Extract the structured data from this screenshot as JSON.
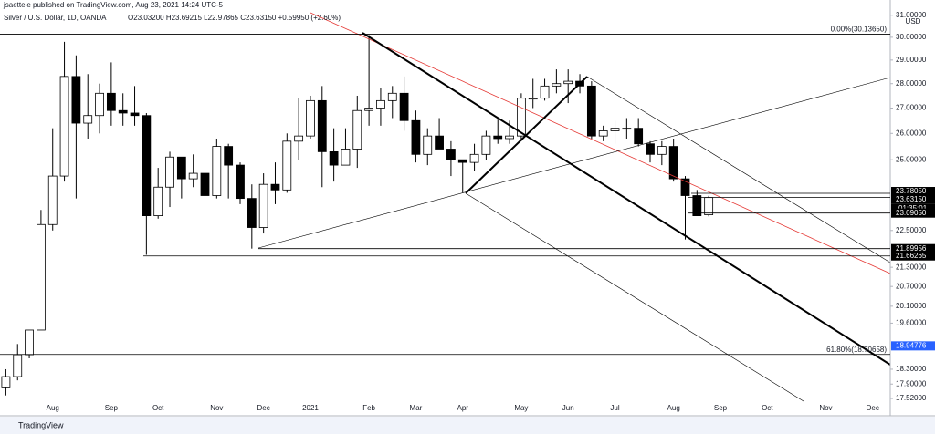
{
  "chart_data": {
    "type": "candlestick",
    "title": "jsaettele published on TradingView.com, Aug 23, 2021 14:24 UTC-5",
    "subtitle": "Silver / U.S. Dollar, 1D, OANDA",
    "ohlc_text": "O23.03200 H23.69215 L22.97865 C23.63150 +0.59950 (+2.60%)",
    "currency": "USD",
    "countdown": "01:35:01",
    "footer": "TradingView",
    "log_scale": true,
    "up_color": "#ffffff",
    "down_color": "#000000",
    "categories": [
      null,
      null,
      null,
      null,
      "Aug",
      null,
      null,
      null,
      null,
      "Sep",
      null,
      null,
      null,
      "Oct",
      null,
      null,
      null,
      null,
      "Nov",
      null,
      null,
      null,
      "Dec",
      null,
      null,
      null,
      "2021",
      null,
      null,
      null,
      null,
      "Feb",
      null,
      null,
      null,
      "Mar",
      null,
      null,
      null,
      "Apr",
      null,
      null,
      null,
      null,
      "May",
      null,
      null,
      null,
      "Jun",
      null,
      null,
      null,
      "Jul",
      null,
      null,
      null,
      null,
      "Aug",
      null,
      null,
      null,
      "Sep",
      null,
      null,
      null,
      "Oct",
      null,
      null,
      null,
      null,
      "Nov",
      null,
      null,
      null,
      "Dec",
      null
    ],
    "open": [
      17.8,
      18.1,
      18.7,
      19.4,
      22.7,
      24.4,
      28.3,
      26.4,
      26.7,
      27.6,
      26.9,
      26.8,
      26.7,
      23.0,
      24.0,
      25.1,
      24.3,
      24.5,
      23.7,
      25.5,
      24.8,
      23.6,
      22.6,
      24.1,
      23.9,
      25.7,
      25.9,
      27.3,
      25.3,
      24.8,
      25.4,
      26.9,
      27.0,
      27.3,
      27.6,
      26.5,
      25.2,
      25.9,
      25.4,
      25.0,
      24.9,
      25.2,
      25.9,
      25.8,
      25.9,
      27.4,
      27.4,
      27.9,
      28.0,
      28.1,
      27.9,
      25.9,
      26.1,
      26.2,
      26.2,
      25.6,
      25.2,
      25.5,
      24.3,
      23.7,
      23.032,
      null,
      null,
      null,
      null,
      null,
      null,
      null,
      null,
      null,
      null,
      null,
      null,
      null,
      null,
      null
    ],
    "high": [
      18.3,
      19.0,
      19.4,
      23.2,
      26.2,
      29.8,
      29.2,
      28.4,
      28.0,
      28.9,
      27.6,
      27.9,
      26.8,
      24.7,
      25.3,
      25.1,
      25.2,
      24.8,
      25.8,
      25.6,
      24.9,
      24.1,
      24.5,
      24.9,
      26.0,
      27.4,
      27.5,
      27.9,
      26.2,
      26.2,
      27.5,
      30.1,
      27.8,
      27.9,
      28.3,
      26.9,
      26.2,
      26.6,
      25.7,
      25.0,
      25.6,
      26.1,
      26.6,
      26.5,
      27.6,
      28.2,
      28.2,
      28.6,
      28.6,
      28.4,
      28.1,
      26.3,
      26.5,
      26.6,
      26.6,
      25.7,
      25.7,
      25.8,
      24.4,
      23.9,
      23.69215,
      null,
      null,
      null,
      null,
      null,
      null,
      null,
      null,
      null,
      null,
      null,
      null,
      null,
      null,
      null
    ],
    "low": [
      17.6,
      18.0,
      18.6,
      19.4,
      22.5,
      24.2,
      23.6,
      25.8,
      26.0,
      26.3,
      26.3,
      26.3,
      21.7,
      22.9,
      23.3,
      23.6,
      24.0,
      22.9,
      23.6,
      23.6,
      23.4,
      21.9,
      22.4,
      23.4,
      23.8,
      25.0,
      25.8,
      24.0,
      24.2,
      24.8,
      24.7,
      26.3,
      26.3,
      26.6,
      26.1,
      24.9,
      24.8,
      25.5,
      24.4,
      23.8,
      24.6,
      25.0,
      25.6,
      25.6,
      25.7,
      27.0,
      27.3,
      27.6,
      27.2,
      27.6,
      25.8,
      25.7,
      25.6,
      25.8,
      25.5,
      24.9,
      24.8,
      24.2,
      22.2,
      23.0,
      22.97865,
      null,
      null,
      null,
      null,
      null,
      null,
      null,
      null,
      null,
      null,
      null,
      null,
      null,
      null,
      null
    ],
    "close": [
      18.1,
      18.7,
      19.4,
      22.7,
      24.4,
      28.3,
      26.4,
      26.7,
      27.6,
      26.9,
      26.8,
      26.7,
      23.0,
      24.0,
      25.1,
      24.3,
      24.5,
      23.7,
      25.5,
      24.8,
      23.6,
      22.6,
      24.1,
      23.9,
      25.7,
      25.9,
      27.3,
      25.3,
      24.8,
      25.4,
      26.9,
      27.0,
      27.3,
      27.6,
      26.5,
      25.2,
      25.9,
      25.4,
      25.0,
      24.9,
      25.2,
      25.9,
      25.8,
      25.9,
      27.4,
      27.4,
      27.9,
      28.0,
      28.1,
      27.9,
      25.9,
      26.1,
      26.2,
      26.2,
      25.6,
      25.2,
      25.5,
      24.3,
      23.7,
      23.0,
      23.6315,
      null,
      null,
      null,
      null,
      null,
      null,
      null,
      null,
      null,
      null,
      null,
      null,
      null,
      null,
      null
    ],
    "ylim": [
      17.45,
      31.37
    ],
    "yticks": [
      {
        "value": 31,
        "label": "31.00000"
      },
      {
        "value": 30,
        "label": "30.00000"
      },
      {
        "value": 29,
        "label": "29.00000"
      },
      {
        "value": 28,
        "label": "28.00000"
      },
      {
        "value": 27,
        "label": "27.00000"
      },
      {
        "value": 26,
        "label": "26.00000"
      },
      {
        "value": 25,
        "label": "25.00000"
      },
      {
        "value": 22.5,
        "label": "22.50000"
      },
      {
        "value": 21.3,
        "label": "21.30000"
      },
      {
        "value": 20.7,
        "label": "20.70000"
      },
      {
        "value": 20.1,
        "label": "20.10000"
      },
      {
        "value": 19.6,
        "label": "19.60000"
      },
      {
        "value": 18.3,
        "label": "18.30000"
      },
      {
        "value": 17.9,
        "label": "17.90000"
      },
      {
        "value": 17.52,
        "label": "17.52000"
      }
    ],
    "price_tags": [
      {
        "value": 23.7805,
        "label": "23.78050",
        "color": "#000000"
      },
      {
        "value": 23.6315,
        "label": "23.63150",
        "color": "#000000"
      },
      {
        "value": 23.0905,
        "label": "23.09050",
        "color": "#000000"
      },
      {
        "value": 21.89956,
        "label": "21.89956",
        "color": "#000000"
      },
      {
        "value": 21.66265,
        "label": "21.66265",
        "color": "#000000"
      },
      {
        "value": 18.94776,
        "label": "18.94776",
        "color": "#2962ff"
      }
    ],
    "fib_levels": [
      {
        "value": 30.1365,
        "label": "0.00%(30.13650)"
      },
      {
        "value": 18.70658,
        "label": "61.80%(18.70658)"
      }
    ]
  }
}
